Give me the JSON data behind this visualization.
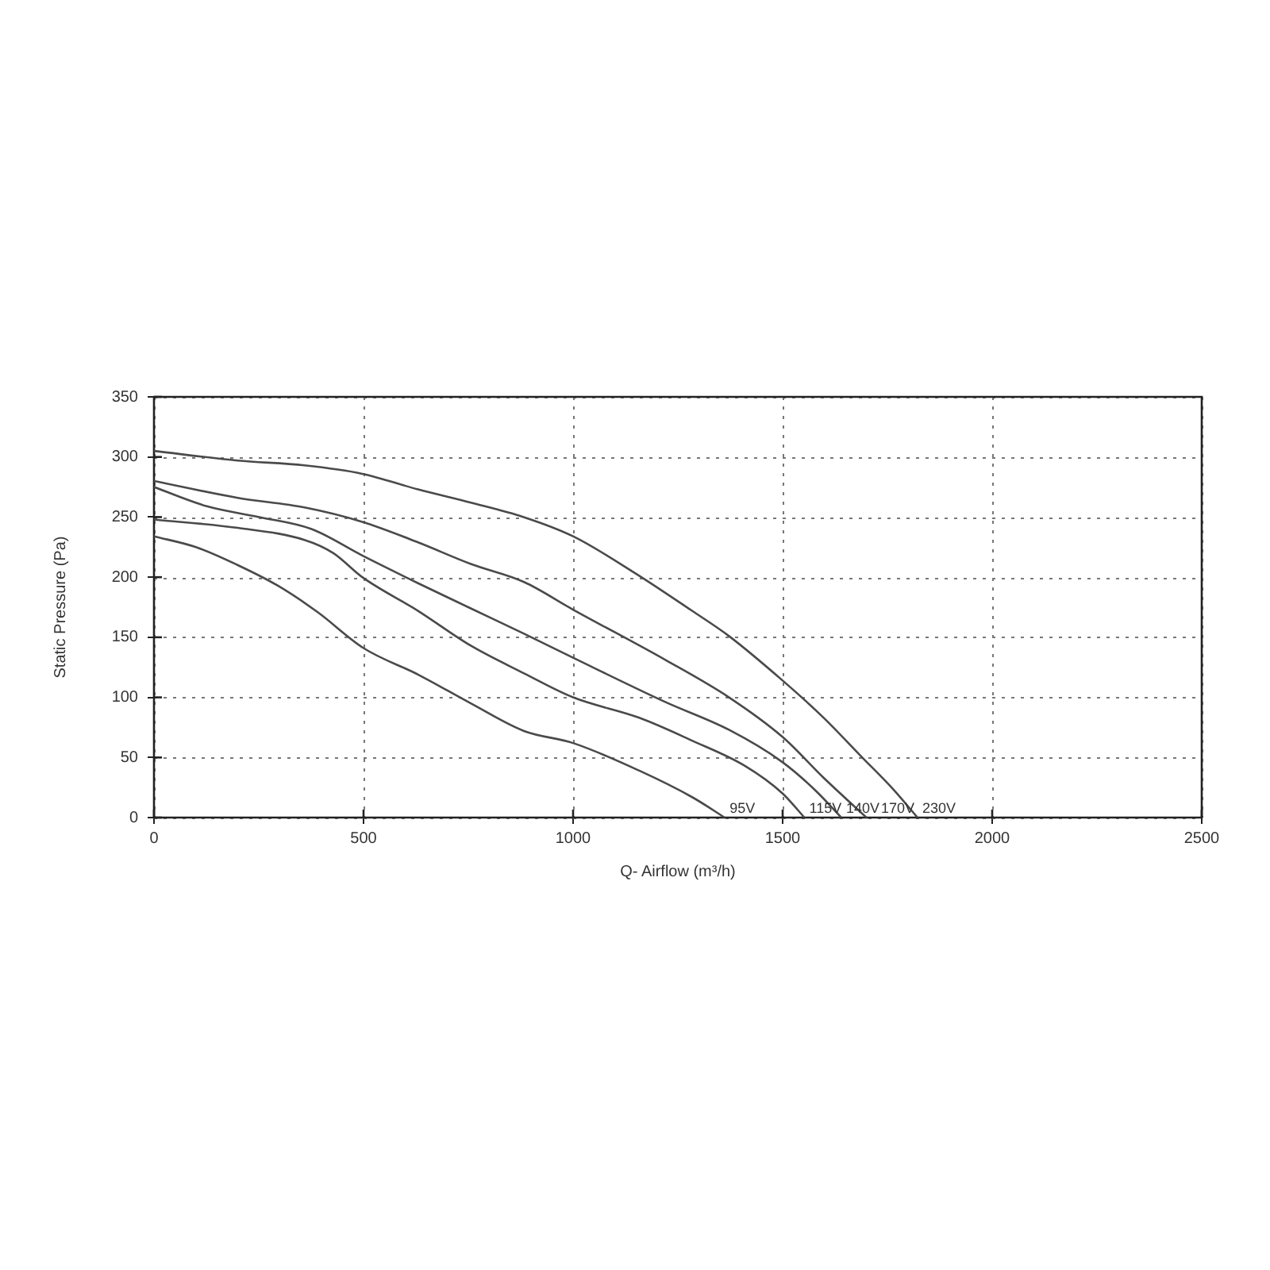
{
  "chart_data": {
    "type": "line",
    "xlabel": "Q- Airflow (m³/h)",
    "ylabel": "Static Pressure (Pa)",
    "xlim": [
      0,
      2500
    ],
    "xticks": [
      0,
      500,
      1000,
      1500,
      2000,
      2500
    ],
    "ylim": [
      0,
      350
    ],
    "yticks": [
      0,
      50,
      100,
      150,
      200,
      250,
      300,
      350
    ],
    "grid": true,
    "marker": "none",
    "line_style": "solid",
    "series": [
      {
        "name": "95V",
        "color": "#4a4a4a",
        "x": [
          0,
          100,
          200,
          295,
          390,
          500,
          630,
          756,
          883,
          1000,
          1158,
          1284,
          1362
        ],
        "values": [
          234,
          225,
          210,
          193,
          171,
          141,
          119,
          95,
          72,
          62,
          39,
          17,
          0
        ]
      },
      {
        "name": "115V",
        "color": "#4a4a4a",
        "x": [
          0,
          200,
          359,
          428,
          497,
          630,
          756,
          883,
          1000,
          1158,
          1284,
          1410,
          1500,
          1552
        ],
        "values": [
          248,
          241,
          231,
          220,
          200,
          172,
          143,
          120,
          100,
          83,
          64,
          43,
          20,
          0
        ]
      },
      {
        "name": "140V",
        "color": "#4a4a4a",
        "x": [
          0,
          126,
          251,
          376,
          497,
          630,
          756,
          883,
          1000,
          1221,
          1372,
          1500,
          1580,
          1640
        ],
        "values": [
          275,
          259,
          250,
          240,
          218,
          195,
          174,
          153,
          133,
          96,
          73,
          46,
          22,
          0
        ]
      },
      {
        "name": "170V",
        "color": "#4a4a4a",
        "x": [
          0,
          200,
          359,
          497,
          630,
          756,
          883,
          1000,
          1221,
          1372,
          1500,
          1598,
          1700
        ],
        "values": [
          280,
          266,
          258,
          246,
          229,
          211,
          196,
          173,
          131,
          100,
          67,
          33,
          0
        ]
      },
      {
        "name": "230V",
        "color": "#4a4a4a",
        "x": [
          0,
          200,
          359,
          497,
          630,
          756,
          882,
          1000,
          1145,
          1284,
          1372,
          1500,
          1598,
          1690,
          1760,
          1822
        ],
        "values": [
          305,
          297,
          293,
          286,
          273,
          262,
          250,
          234,
          204,
          172,
          151,
          114,
          83,
          50,
          25,
          0
        ]
      }
    ]
  }
}
